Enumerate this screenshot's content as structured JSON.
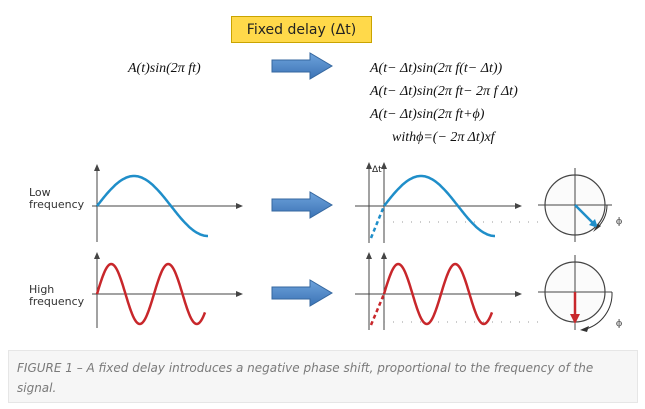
{
  "header_label": "Fixed delay (Δt)",
  "input_formula": "A(t)sin(2π ft)",
  "output_formulas": [
    "A(t− Δt)sin(2π f(t− Δt))",
    "A(t− Δt)sin(2π ft− 2π f Δt)",
    "A(t− Δt)sin(2π ft+ϕ)",
    "withϕ=(− 2π Δt)xf"
  ],
  "rows": {
    "low": {
      "label_line1": "Low",
      "label_line2": "frequency",
      "color": "#1f8ec9"
    },
    "high": {
      "label_line1": "High",
      "label_line2": "frequency",
      "color": "#c8272b"
    }
  },
  "delay_label": "Δt",
  "phi_symbol": "ϕ",
  "arrow_color": "#4a86c8",
  "caption": {
    "line1": "FIGURE 1 – A fixed delay introduces a negative phase shift, proportional to the frequency of the",
    "line2": "signal."
  }
}
